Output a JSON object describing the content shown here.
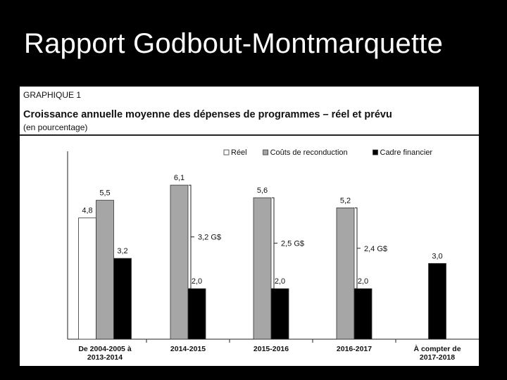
{
  "slide": {
    "title": "Rapport Godbout-Montmarquette"
  },
  "chart_data": {
    "type": "bar",
    "figure_label": "GRAPHIQUE 1",
    "title": "Croissance annuelle moyenne des dépenses de programmes – réel et prévu",
    "subtitle": "(en pourcentage)",
    "legend_position": "top-right",
    "categories": [
      [
        "De 2004-2005 à",
        "2013-2014"
      ],
      [
        "2014-2015"
      ],
      [
        "2015-2016"
      ],
      [
        "2016-2017"
      ],
      [
        "À compter de",
        "2017-2018"
      ]
    ],
    "series": [
      {
        "name": "Réel",
        "color": "#ffffff",
        "values": [
          4.8,
          null,
          null,
          null,
          null
        ],
        "labels": [
          "4,8",
          "",
          "",
          "",
          ""
        ]
      },
      {
        "name": "Coûts de reconduction",
        "color": "#a6a6a6",
        "values": [
          5.5,
          6.1,
          5.6,
          5.2,
          null
        ],
        "labels": [
          "5,5",
          "6,1",
          "5,6",
          "5,2",
          ""
        ]
      },
      {
        "name": "Cadre financier",
        "color": "#000000",
        "values": [
          3.2,
          2.0,
          2.0,
          2.0,
          3.0
        ],
        "labels": [
          "3,2",
          "2,0",
          "2,0",
          "2,0",
          "3,0"
        ]
      }
    ],
    "gaps": [
      {
        "category": 1,
        "from": 2.0,
        "to": 6.1,
        "label": "3,2 G$"
      },
      {
        "category": 2,
        "from": 2.0,
        "to": 5.6,
        "label": "2,5 G$"
      },
      {
        "category": 3,
        "from": 2.0,
        "to": 5.2,
        "label": "2,4 G$"
      }
    ],
    "ylim": [
      0,
      7
    ],
    "grid": false
  }
}
